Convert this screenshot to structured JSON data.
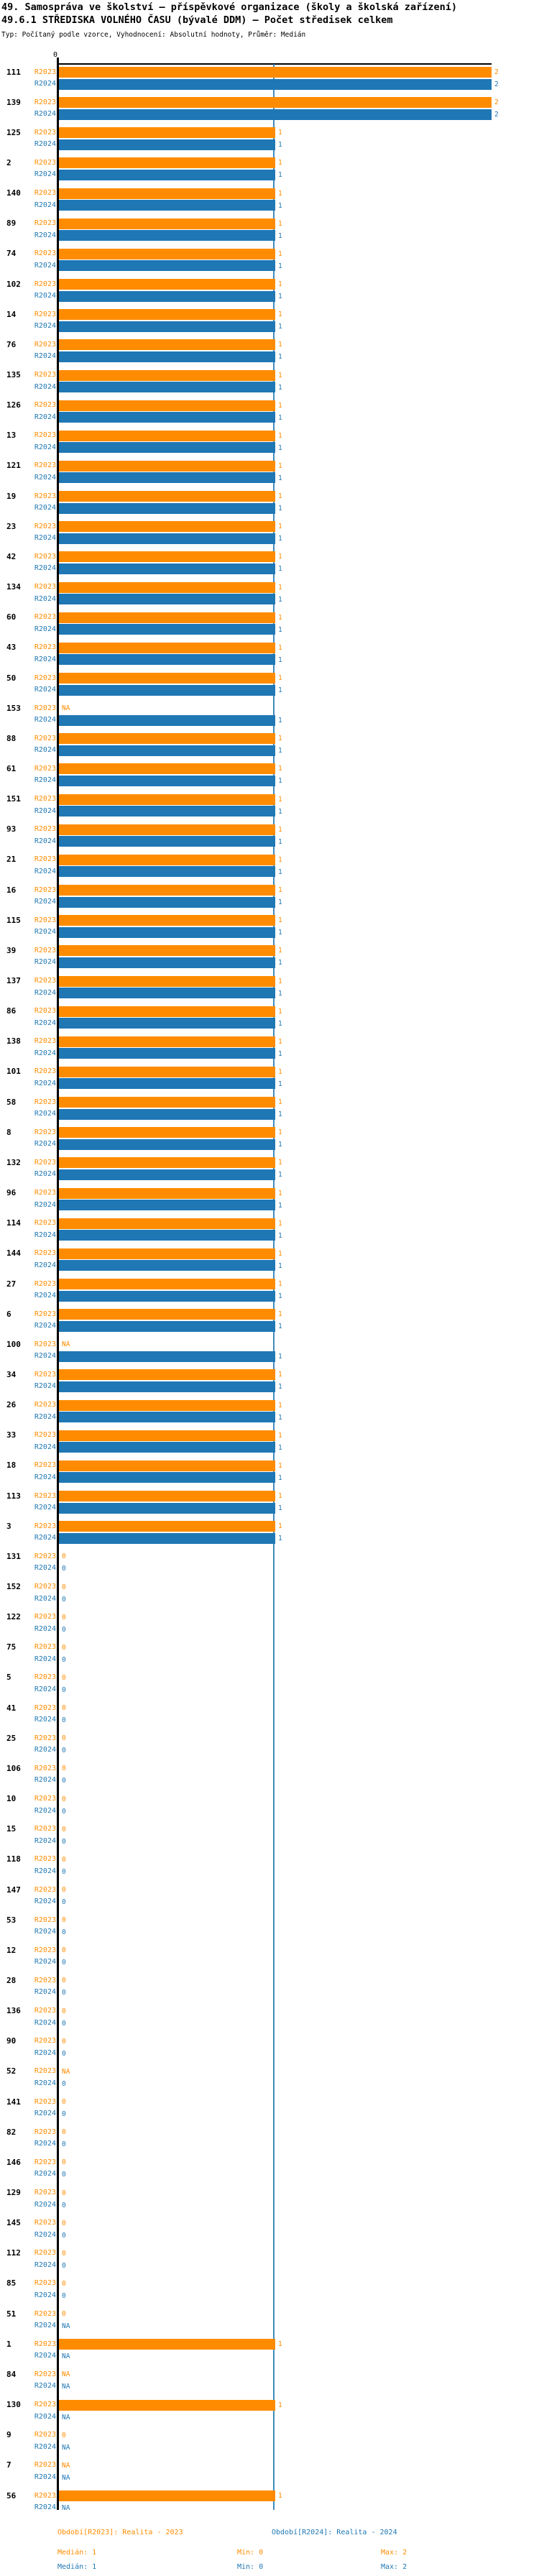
{
  "title_line1": "49. Samospráva ve školství – příspěvkové organizace (školy a školská zařízení)",
  "title_line2": "49.6.1 STŘEDISKA VOLNÉHO ČASU (bývalé DDM) – Počet středisek celkem",
  "subtitle": "Typ: Počítaný podle vzorce, Vyhodnocení: Absolutní hodnoty, Průměr: Medián",
  "axis": {
    "zero_label": "0"
  },
  "colors": {
    "orange": "#FF8C00",
    "blue": "#1F77B4",
    "axis": "#000000",
    "median_line": "#1F77B4"
  },
  "legend": {
    "r2023": {
      "period": "Období[R2023]: Realita - 2023",
      "median": "Medián: 1",
      "min": "Min: 0",
      "max": "Max: 2"
    },
    "r2024": {
      "period": "Období[R2024]: Realita - 2024",
      "median": "Medián: 1",
      "min": "Min: 0",
      "max": "Max: 2"
    }
  },
  "chart_data": {
    "type": "bar",
    "orientation": "horizontal",
    "title": "49.6.1 STŘEDISKA VOLNÉHO ČASU (bývalé DDM) – Počet středisek celkem",
    "xlabel": "",
    "ylabel": "",
    "x_range": [
      0,
      2
    ],
    "median_line_at": 1,
    "grid": false,
    "series_names": [
      "R2023",
      "R2024"
    ],
    "series_labels": {
      "r2023": "R2023",
      "r2024": "R2024"
    },
    "rows": [
      {
        "id": "111",
        "r2023": "2",
        "r2024": "2"
      },
      {
        "id": "139",
        "r2023": "2",
        "r2024": "2"
      },
      {
        "id": "125",
        "r2023": "1",
        "r2024": "1"
      },
      {
        "id": "2",
        "r2023": "1",
        "r2024": "1"
      },
      {
        "id": "140",
        "r2023": "1",
        "r2024": "1"
      },
      {
        "id": "89",
        "r2023": "1",
        "r2024": "1"
      },
      {
        "id": "74",
        "r2023": "1",
        "r2024": "1"
      },
      {
        "id": "102",
        "r2023": "1",
        "r2024": "1"
      },
      {
        "id": "14",
        "r2023": "1",
        "r2024": "1"
      },
      {
        "id": "76",
        "r2023": "1",
        "r2024": "1"
      },
      {
        "id": "135",
        "r2023": "1",
        "r2024": "1"
      },
      {
        "id": "126",
        "r2023": "1",
        "r2024": "1"
      },
      {
        "id": "13",
        "r2023": "1",
        "r2024": "1"
      },
      {
        "id": "121",
        "r2023": "1",
        "r2024": "1"
      },
      {
        "id": "19",
        "r2023": "1",
        "r2024": "1"
      },
      {
        "id": "23",
        "r2023": "1",
        "r2024": "1"
      },
      {
        "id": "42",
        "r2023": "1",
        "r2024": "1"
      },
      {
        "id": "134",
        "r2023": "1",
        "r2024": "1"
      },
      {
        "id": "60",
        "r2023": "1",
        "r2024": "1"
      },
      {
        "id": "43",
        "r2023": "1",
        "r2024": "1"
      },
      {
        "id": "50",
        "r2023": "1",
        "r2024": "1"
      },
      {
        "id": "153",
        "r2023": "NA",
        "r2024": "1"
      },
      {
        "id": "88",
        "r2023": "1",
        "r2024": "1"
      },
      {
        "id": "61",
        "r2023": "1",
        "r2024": "1"
      },
      {
        "id": "151",
        "r2023": "1",
        "r2024": "1"
      },
      {
        "id": "93",
        "r2023": "1",
        "r2024": "1"
      },
      {
        "id": "21",
        "r2023": "1",
        "r2024": "1"
      },
      {
        "id": "16",
        "r2023": "1",
        "r2024": "1"
      },
      {
        "id": "115",
        "r2023": "1",
        "r2024": "1"
      },
      {
        "id": "39",
        "r2023": "1",
        "r2024": "1"
      },
      {
        "id": "137",
        "r2023": "1",
        "r2024": "1"
      },
      {
        "id": "86",
        "r2023": "1",
        "r2024": "1"
      },
      {
        "id": "138",
        "r2023": "1",
        "r2024": "1"
      },
      {
        "id": "101",
        "r2023": "1",
        "r2024": "1"
      },
      {
        "id": "58",
        "r2023": "1",
        "r2024": "1"
      },
      {
        "id": "8",
        "r2023": "1",
        "r2024": "1"
      },
      {
        "id": "132",
        "r2023": "1",
        "r2024": "1"
      },
      {
        "id": "96",
        "r2023": "1",
        "r2024": "1"
      },
      {
        "id": "114",
        "r2023": "1",
        "r2024": "1"
      },
      {
        "id": "144",
        "r2023": "1",
        "r2024": "1"
      },
      {
        "id": "27",
        "r2023": "1",
        "r2024": "1"
      },
      {
        "id": "6",
        "r2023": "1",
        "r2024": "1"
      },
      {
        "id": "100",
        "r2023": "NA",
        "r2024": "1"
      },
      {
        "id": "34",
        "r2023": "1",
        "r2024": "1"
      },
      {
        "id": "26",
        "r2023": "1",
        "r2024": "1"
      },
      {
        "id": "33",
        "r2023": "1",
        "r2024": "1"
      },
      {
        "id": "18",
        "r2023": "1",
        "r2024": "1"
      },
      {
        "id": "113",
        "r2023": "1",
        "r2024": "1"
      },
      {
        "id": "3",
        "r2023": "1",
        "r2024": "1"
      },
      {
        "id": "131",
        "r2023": "0",
        "r2024": "0"
      },
      {
        "id": "152",
        "r2023": "0",
        "r2024": "0"
      },
      {
        "id": "122",
        "r2023": "0",
        "r2024": "0"
      },
      {
        "id": "75",
        "r2023": "0",
        "r2024": "0"
      },
      {
        "id": "5",
        "r2023": "0",
        "r2024": "0"
      },
      {
        "id": "41",
        "r2023": "0",
        "r2024": "0"
      },
      {
        "id": "25",
        "r2023": "0",
        "r2024": "0"
      },
      {
        "id": "106",
        "r2023": "0",
        "r2024": "0"
      },
      {
        "id": "10",
        "r2023": "0",
        "r2024": "0"
      },
      {
        "id": "15",
        "r2023": "0",
        "r2024": "0"
      },
      {
        "id": "118",
        "r2023": "0",
        "r2024": "0"
      },
      {
        "id": "147",
        "r2023": "0",
        "r2024": "0"
      },
      {
        "id": "53",
        "r2023": "0",
        "r2024": "0"
      },
      {
        "id": "12",
        "r2023": "0",
        "r2024": "0"
      },
      {
        "id": "28",
        "r2023": "0",
        "r2024": "0"
      },
      {
        "id": "136",
        "r2023": "0",
        "r2024": "0"
      },
      {
        "id": "90",
        "r2023": "0",
        "r2024": "0"
      },
      {
        "id": "52",
        "r2023": "NA",
        "r2024": "0"
      },
      {
        "id": "141",
        "r2023": "0",
        "r2024": "0"
      },
      {
        "id": "82",
        "r2023": "0",
        "r2024": "0"
      },
      {
        "id": "146",
        "r2023": "0",
        "r2024": "0"
      },
      {
        "id": "129",
        "r2023": "0",
        "r2024": "0"
      },
      {
        "id": "145",
        "r2023": "0",
        "r2024": "0"
      },
      {
        "id": "112",
        "r2023": "0",
        "r2024": "0"
      },
      {
        "id": "85",
        "r2023": "0",
        "r2024": "0"
      },
      {
        "id": "51",
        "r2023": "0",
        "r2024": "NA"
      },
      {
        "id": "1",
        "r2023": "1",
        "r2024": "NA"
      },
      {
        "id": "84",
        "r2023": "NA",
        "r2024": "NA"
      },
      {
        "id": "130",
        "r2023": "1",
        "r2024": "NA"
      },
      {
        "id": "9",
        "r2023": "0",
        "r2024": "NA"
      },
      {
        "id": "7",
        "r2023": "NA",
        "r2024": "NA"
      },
      {
        "id": "56",
        "r2023": "1",
        "r2024": "NA"
      }
    ]
  }
}
